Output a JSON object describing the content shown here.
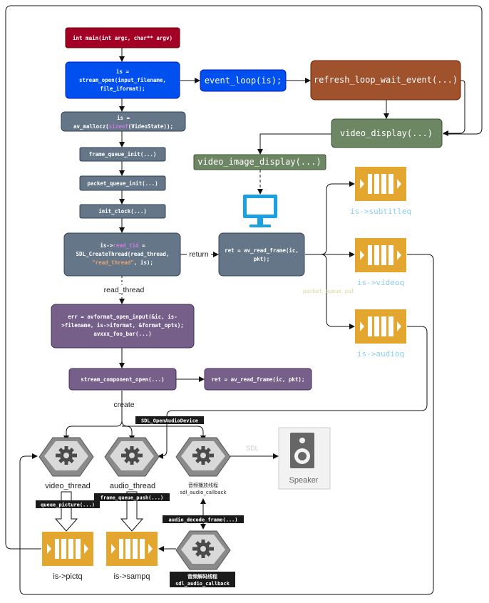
{
  "boxes": {
    "main": "int main(int argc, char** argv)",
    "stream_open_1": "is =",
    "stream_open_2": "stream_open(input_filename,",
    "stream_open_3": "file_iformat);",
    "event_loop": "event_loop(is);",
    "refresh": "refresh_loop_wait_event(...)",
    "video_display": "video_display(...)",
    "video_image_display": "video_image_display(...)",
    "mallocz_1": "is =",
    "mallocz_2a": "av_mallocz(",
    "mallocz_2b": "sizeof",
    "mallocz_2c": "(VideoState));",
    "frame_queue_init": "frame_queue_init(...)",
    "packet_queue_init": "packet_queue_init(...)",
    "init_clock": "init_clock(...)",
    "create_thread_1a": "is->",
    "create_thread_1b": "read_tid",
    "create_thread_1c": " =",
    "create_thread_2": "SDL_CreateThread(read_thread,",
    "create_thread_3a": "\"read_thread\"",
    "create_thread_3b": ", is);",
    "read_frame_1": "ret = av_read_frame(ic,",
    "read_frame_2": "pkt);",
    "open_input_1": "err = avformat_open_input(&ic, is-",
    "open_input_2": ">filename, is->iformat, &format_opts);",
    "open_input_3": "avxxx_foo_bar(...)",
    "stream_component_open": "stream_component_open(...)",
    "read_frame_loop": "ret = av_read_frame(ic, pkt);"
  },
  "labels": {
    "return": "return",
    "read_thread": "read_thread",
    "create": "create",
    "subtitleq": "is->subtitleq",
    "videoq": "is->videoq",
    "audioq": "is->audioq",
    "packet_queue_put": "packet_queue_put",
    "video_thread": "video_thread",
    "audio_thread": "audio_thread",
    "audio_play_thread": "音频播放线程",
    "sdl_audio_callback": "sdl_audio_callback",
    "pictq": "is->pictq",
    "sampq": "is->sampq",
    "speaker": "Speaker",
    "sdl": "SDL",
    "audio_decode_thread": "音频解码线程",
    "sdl_audio_callback_2": "sdl_audio_callback"
  },
  "tags": {
    "sdl_open_audio_device": "SDL_OpenAudioDevice",
    "queue_picture": "queue_picture(...)",
    "frame_queue_push": "frame_queue_push(...)",
    "audio_decode_frame": "audio_decode_frame(...)"
  },
  "colors": {
    "main": "#a20025",
    "blue": "#0050ef",
    "orange": "#a0522d",
    "green": "#6d8764",
    "slate": "#647687",
    "purple": "#76608a",
    "queue": "#e3a72f",
    "monitor": "#1ba1e2",
    "label_cyan": "#8ecdf0"
  },
  "icons": [
    "gear-icon",
    "queue-icon",
    "monitor-icon",
    "speaker-icon"
  ]
}
